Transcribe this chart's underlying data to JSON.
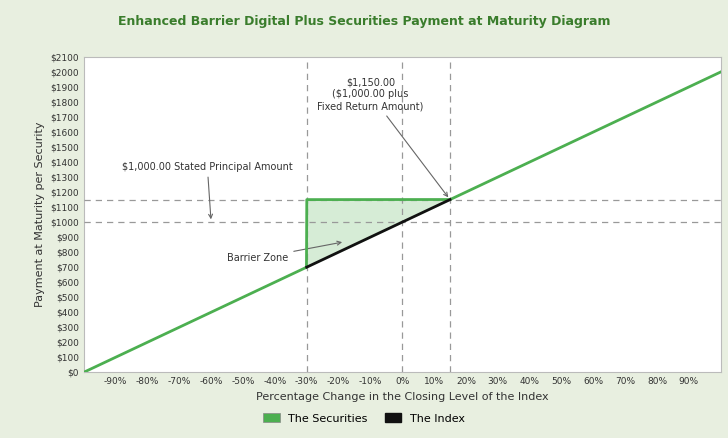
{
  "title": "Enhanced Barrier Digital Plus Securities Payment at Maturity Diagram",
  "title_color": "#3a7d2c",
  "xlabel": "Percentage Change in the Closing Level of the Index",
  "ylabel": "Payment at Maturity per Security",
  "background_outer": "#e8efe0",
  "background_inner": "#ffffff",
  "line_color_securities": "#4caf50",
  "line_color_index": "#111111",
  "fill_color": "#d6ecd6",
  "x_ticks": [
    -90,
    -80,
    -70,
    -60,
    -50,
    -40,
    -30,
    -20,
    -10,
    0,
    10,
    20,
    30,
    40,
    50,
    60,
    70,
    80,
    90
  ],
  "x_tick_labels": [
    "-90%",
    "-80%",
    "-70%",
    "-60%",
    "-50%",
    "-40%",
    "-30%",
    "-20%",
    "-10%",
    "0%",
    "10%",
    "20%",
    "30%",
    "40%",
    "50%",
    "60%",
    "70%",
    "80%",
    "90%"
  ],
  "y_ticks": [
    0,
    100,
    200,
    300,
    400,
    500,
    600,
    700,
    800,
    900,
    1000,
    1100,
    1200,
    1300,
    1400,
    1500,
    1600,
    1700,
    1800,
    1900,
    2000,
    2100
  ],
  "y_tick_labels": [
    "$0",
    "$100",
    "$200",
    "$300",
    "$400",
    "$500",
    "$600",
    "$700",
    "$800",
    "$900",
    "$1000",
    "$1100",
    "$1200",
    "$1300",
    "$1400",
    "$1500",
    "$1600",
    "$1700",
    "$1800",
    "$1900",
    "$2000",
    "$2100"
  ],
  "stated_principal": 1000,
  "fixed_return_payment": 1150,
  "barrier_x": -30,
  "cap_x": 15,
  "legend_securities_color": "#4caf50",
  "legend_index_color": "#111111",
  "annotation_principal_text": "$1,000.00 Stated Principal Amount",
  "annotation_fixed_text": "$1,150.00\n($1,000.00 plus\nFixed Return Amount)",
  "barrier_zone_text": "Barrier Zone"
}
